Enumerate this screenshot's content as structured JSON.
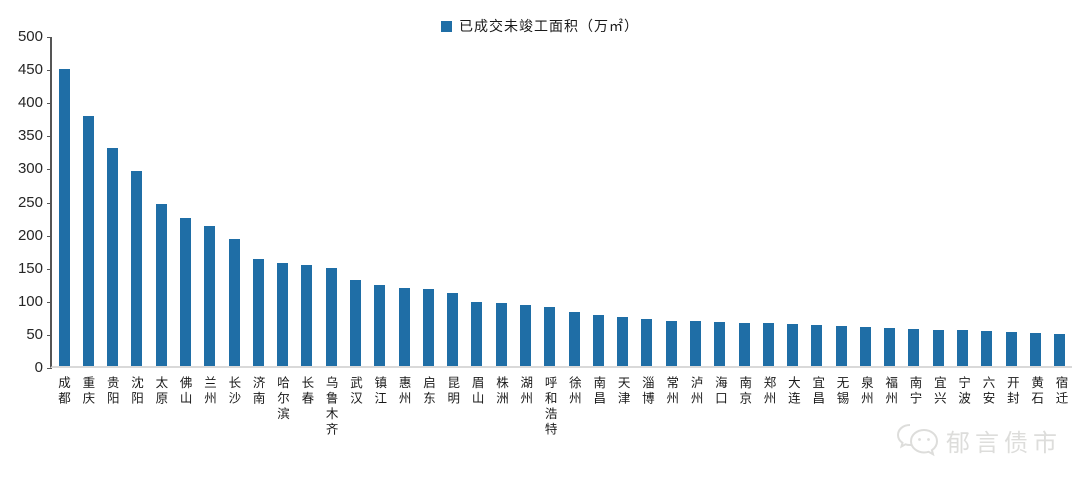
{
  "legend": {
    "label": "已成交未竣工面积（万㎡）",
    "marker_color": "#1F6EA6"
  },
  "watermark": {
    "text": "郁言债市",
    "icon": "wechat-chat-bubbles-icon",
    "color": "#dddddb"
  },
  "colors": {
    "bar": "#1F6EA6",
    "y_axis_line": "#555555",
    "x_axis_line": "#d9d9d9",
    "tick_text": "#262626",
    "background": "#ffffff"
  },
  "chart_data": {
    "type": "bar",
    "title": "",
    "xlabel": "",
    "ylabel": "",
    "series_name": "已成交未竣工面积（万㎡）",
    "legend_position": "top-center",
    "grid": false,
    "ylim": [
      0,
      500
    ],
    "ytick_step": 50,
    "yticks": [
      0,
      50,
      100,
      150,
      200,
      250,
      300,
      350,
      400,
      450,
      500
    ],
    "bar_color": "#1F6EA6",
    "categories": [
      "成都",
      "重庆",
      "贵阳",
      "沈阳",
      "太原",
      "佛山",
      "兰州",
      "长沙",
      "济南",
      "哈尔滨",
      "长春",
      "乌鲁木齐",
      "武汉",
      "镇江",
      "惠州",
      "启东",
      "昆明",
      "眉山",
      "株洲",
      "湖州",
      "呼和浩特",
      "徐州",
      "南昌",
      "天津",
      "淄博",
      "常州",
      "泸州",
      "海口",
      "南京",
      "郑州",
      "大连",
      "宜昌",
      "无锡",
      "泉州",
      "福州",
      "南宁",
      "宜兴",
      "宁波",
      "六安",
      "开封",
      "黄石",
      "宿迁"
    ],
    "values": [
      452,
      380,
      332,
      296,
      246,
      225,
      213,
      193,
      163,
      156,
      154,
      149,
      131,
      123,
      119,
      117,
      111,
      97,
      96,
      93,
      90,
      82,
      77,
      74,
      71,
      69,
      68,
      67,
      66,
      65,
      64,
      62,
      61,
      59,
      58,
      56,
      55,
      54,
      53,
      51,
      50,
      48
    ]
  }
}
